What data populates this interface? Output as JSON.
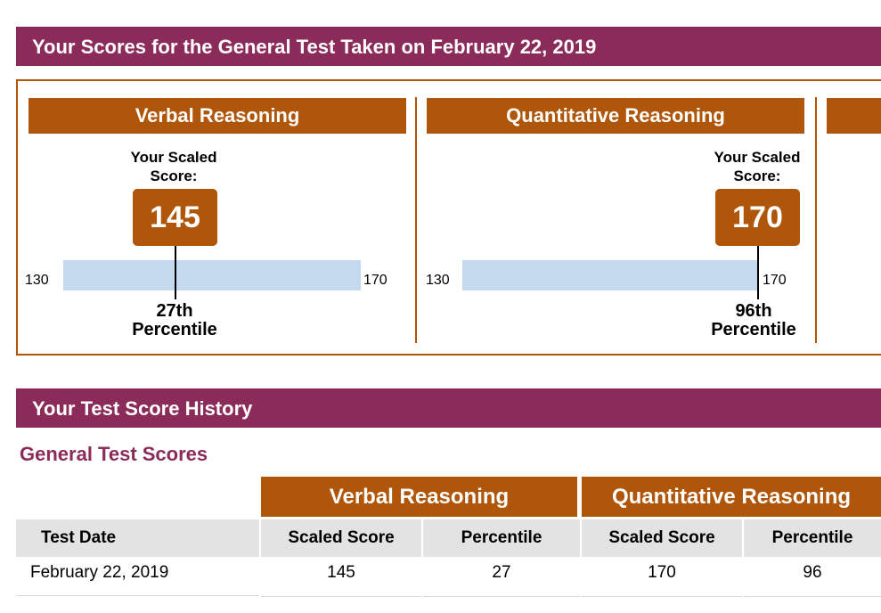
{
  "header": {
    "title": "Your Scores for the General Test Taken on February 22, 2019"
  },
  "sections": [
    {
      "name": "Verbal Reasoning",
      "scaled_label_1": "Your Scaled",
      "scaled_label_2": "Score:",
      "score": "145",
      "scale_min": "130",
      "scale_max": "170",
      "percentile_1": "27th",
      "percentile_2": "Percentile"
    },
    {
      "name": "Quantitative Reasoning",
      "scaled_label_1": "Your Scaled",
      "scaled_label_2": "Score:",
      "score": "170",
      "scale_min": "130",
      "scale_max": "170",
      "percentile_1": "96th",
      "percentile_2": "Percentile"
    }
  ],
  "history": {
    "title": "Your Test Score History",
    "subtitle": "General Test Scores",
    "groups": [
      "Verbal Reasoning",
      "Quantitative Reasoning"
    ],
    "columns": [
      "Test Date",
      "Scaled Score",
      "Percentile",
      "Scaled Score",
      "Percentile"
    ],
    "rows": [
      [
        "February 22, 2019",
        "145",
        "27",
        "170",
        "96"
      ]
    ]
  },
  "colors": {
    "band": "#8b2b5a",
    "section": "#b0560a",
    "scale_bar": "#c5d9ee",
    "header_cell": "#e3e3e3"
  }
}
